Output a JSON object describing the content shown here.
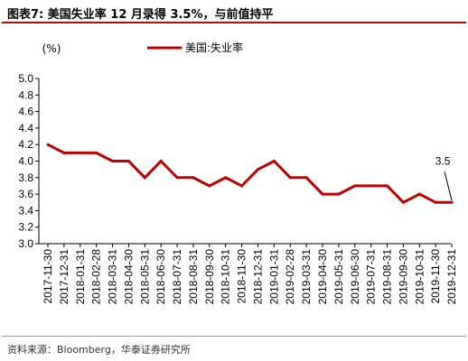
{
  "figure": {
    "title": "图表7:   美国失业率 12 月录得 3.5%，与前值持平",
    "source": "资料来源：Bloomberg，华泰证券研究所"
  },
  "colors": {
    "series": "#c00000",
    "rule": "#b00f12"
  },
  "chart_data": {
    "type": "line",
    "title": "",
    "xlabel": "",
    "ylabel": "(%)",
    "ylim": [
      3.0,
      5.0
    ],
    "yticks": [
      "5.0",
      "4.8",
      "4.6",
      "4.4",
      "4.2",
      "4.0",
      "3.8",
      "3.6",
      "3.4",
      "3.2",
      "3.0"
    ],
    "grid": false,
    "legend_position": "top",
    "x": [
      "2017-11-30",
      "2017-12-31",
      "2018-01-31",
      "2018-02-28",
      "2018-03-31",
      "2018-04-30",
      "2018-05-31",
      "2018-06-30",
      "2018-07-31",
      "2018-08-31",
      "2018-09-30",
      "2018-10-31",
      "2018-11-30",
      "2018-12-31",
      "2019-01-31",
      "2019-02-28",
      "2019-03-31",
      "2019-04-30",
      "2019-05-31",
      "2019-06-30",
      "2019-07-31",
      "2019-08-31",
      "2019-09-30",
      "2019-10-31",
      "2019-11-30",
      "2019-12-31"
    ],
    "series": [
      {
        "name": "美国:失业率",
        "values": [
          4.2,
          4.1,
          4.1,
          4.1,
          4.0,
          4.0,
          3.8,
          4.0,
          3.8,
          3.8,
          3.7,
          3.8,
          3.7,
          3.9,
          4.0,
          3.8,
          3.8,
          3.6,
          3.6,
          3.7,
          3.7,
          3.7,
          3.5,
          3.6,
          3.5,
          3.5
        ]
      }
    ],
    "annotations": [
      {
        "x": "2019-12-31",
        "text": "3.5"
      }
    ]
  }
}
